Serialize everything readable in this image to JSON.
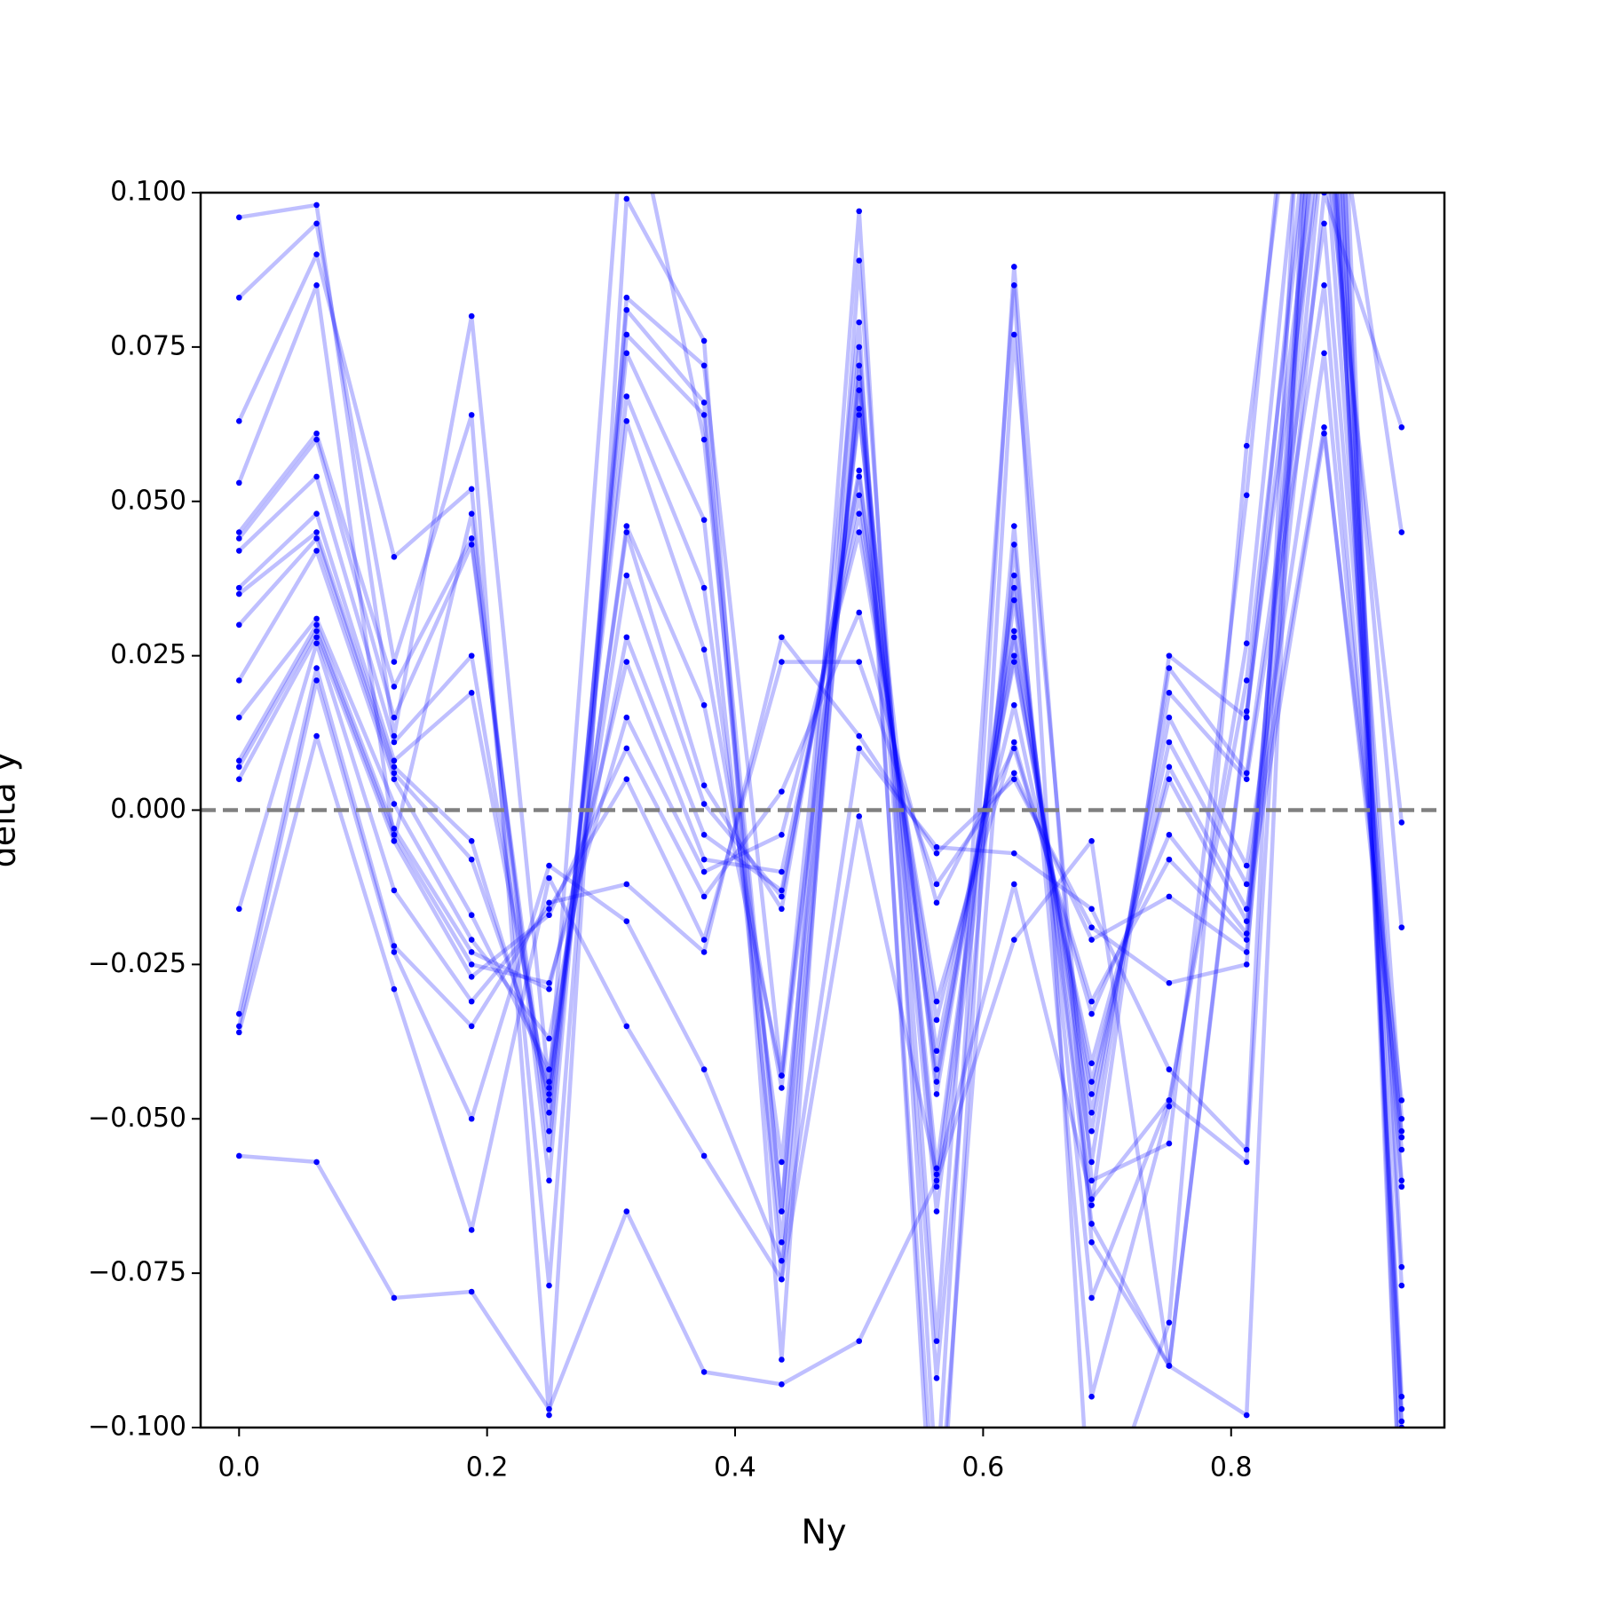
{
  "chart_data": {
    "type": "line",
    "x_label": "Ny",
    "y_label": "delta y",
    "color": "#0000ff",
    "x": [
      0,
      0.0625,
      0.125,
      0.1875,
      0.25,
      0.3125,
      0.375,
      0.4375,
      0.5,
      0.5625,
      0.625,
      0.6875,
      0.75,
      0.8125,
      0.875,
      0.9375
    ],
    "series": [
      {
        "values": [
          0.096,
          0.098,
          0.012,
          0.08,
          -0.045,
          0.12,
          0.06,
          -0.065,
          0.097,
          -0.11,
          0.088,
          -0.07,
          -0.09,
          0.015,
          0.14,
          -0.1
        ]
      },
      {
        "values": [
          0.083,
          0.095,
          0.024,
          0.064,
          -0.098,
          0.099,
          0.076,
          -0.089,
          0.089,
          -0.086,
          0.085,
          -0.12,
          -0.083,
          0.059,
          0.16,
          -0.095
        ]
      },
      {
        "values": [
          0.063,
          0.09,
          0.041,
          0.052,
          -0.077,
          0.083,
          0.072,
          -0.043,
          0.079,
          -0.13,
          0.077,
          -0.06,
          -0.054,
          0.051,
          0.18,
          -0.12
        ]
      },
      {
        "values": [
          0.053,
          0.085,
          -0.005,
          0.048,
          -0.06,
          0.081,
          0.066,
          -0.065,
          0.075,
          -0.092,
          0.046,
          -0.095,
          -0.048,
          0.027,
          0.15,
          -0.074
        ]
      },
      {
        "values": [
          0.045,
          0.061,
          0.02,
          0.044,
          -0.055,
          0.077,
          0.064,
          -0.076,
          0.072,
          -0.12,
          0.043,
          -0.079,
          -0.047,
          0.021,
          0.13,
          -0.077
        ]
      },
      {
        "values": [
          0.044,
          0.06,
          0.015,
          0.043,
          -0.052,
          0.074,
          0.047,
          -0.07,
          0.07,
          -0.061,
          0.038,
          -0.067,
          -0.09,
          0.016,
          0.11,
          -0.06
        ]
      },
      {
        "values": [
          0.042,
          0.054,
          0.011,
          0.025,
          -0.049,
          0.067,
          0.036,
          -0.057,
          0.068,
          -0.058,
          0.036,
          -0.064,
          0.025,
          0.015,
          0.12,
          -0.05
        ]
      },
      {
        "values": [
          0.036,
          0.048,
          0.008,
          0.019,
          -0.047,
          0.063,
          0.026,
          -0.045,
          0.065,
          -0.065,
          0.034,
          -0.057,
          0.023,
          0.006,
          0.095,
          -0.053
        ]
      },
      {
        "values": [
          0.035,
          0.045,
          0.007,
          -0.005,
          -0.046,
          0.046,
          0.017,
          -0.043,
          0.064,
          -0.046,
          0.029,
          -0.052,
          0.019,
          0.005,
          0.085,
          -0.061
        ]
      },
      {
        "values": [
          0.03,
          0.044,
          0.006,
          -0.008,
          -0.044,
          0.045,
          0.004,
          -0.016,
          0.055,
          -0.044,
          0.028,
          -0.049,
          0.015,
          -0.009,
          0.074,
          -0.055
        ]
      },
      {
        "values": [
          0.021,
          0.042,
          0.005,
          -0.017,
          -0.042,
          0.038,
          0.001,
          -0.014,
          0.054,
          -0.042,
          0.025,
          -0.046,
          0.011,
          -0.012,
          0.062,
          -0.052
        ]
      },
      {
        "values": [
          0.015,
          0.031,
          0.001,
          -0.021,
          -0.037,
          0.028,
          -0.004,
          -0.013,
          0.051,
          -0.039,
          0.024,
          -0.044,
          0.007,
          -0.016,
          0.061,
          -0.047
        ]
      },
      {
        "values": [
          0.008,
          0.03,
          -0.003,
          -0.023,
          -0.029,
          0.024,
          -0.008,
          -0.01,
          0.048,
          -0.034,
          0.017,
          -0.041,
          0.005,
          -0.018,
          0.12,
          -0.019
        ]
      },
      {
        "values": [
          0.007,
          0.029,
          -0.004,
          -0.025,
          -0.028,
          0.015,
          -0.01,
          -0.004,
          0.045,
          -0.031,
          0.011,
          -0.033,
          -0.004,
          -0.02,
          0.11,
          -0.002
        ]
      },
      {
        "values": [
          0.005,
          0.028,
          -0.005,
          -0.027,
          -0.017,
          0.01,
          -0.014,
          0.003,
          0.032,
          -0.015,
          0.01,
          -0.031,
          -0.008,
          -0.021,
          0.13,
          0.045
        ]
      },
      {
        "values": [
          -0.016,
          0.027,
          -0.013,
          -0.031,
          -0.016,
          0.005,
          -0.021,
          0.024,
          0.024,
          -0.012,
          0.006,
          -0.021,
          -0.014,
          -0.023,
          0.1,
          0.062
        ]
      },
      {
        "values": [
          -0.033,
          0.023,
          -0.022,
          -0.035,
          -0.015,
          -0.012,
          -0.023,
          0.028,
          0.012,
          -0.007,
          0.005,
          -0.019,
          -0.028,
          -0.025,
          0.14,
          -0.097
        ]
      },
      {
        "values": [
          -0.035,
          0.021,
          -0.023,
          -0.05,
          -0.009,
          -0.018,
          -0.042,
          -0.073,
          0.01,
          -0.006,
          -0.007,
          -0.016,
          -0.042,
          -0.055,
          0.2,
          -0.12
        ]
      },
      {
        "values": [
          -0.036,
          0.012,
          -0.029,
          -0.068,
          -0.011,
          -0.035,
          -0.056,
          -0.076,
          -0.001,
          -0.059,
          -0.012,
          -0.063,
          -0.047,
          -0.057,
          0.15,
          -0.099
        ]
      },
      {
        "values": [
          -0.056,
          -0.057,
          -0.079,
          -0.078,
          -0.097,
          -0.065,
          -0.091,
          -0.093,
          -0.086,
          -0.06,
          -0.021,
          -0.005,
          -0.09,
          -0.098,
          0.18,
          -0.11
        ]
      }
    ],
    "reference_line": {
      "value": 0,
      "color": "#808080"
    },
    "xlim": [
      -0.031,
      0.972
    ],
    "xticks": [
      {
        "value": 0,
        "label": "0.0"
      },
      0.2,
      0.4,
      0.6,
      0.8
    ],
    "ylim": [
      -0.1,
      0.1
    ],
    "yticks": [
      {
        "value": -0.1,
        "label": "−0.100"
      },
      {
        "value": -0.075,
        "label": "−0.075"
      },
      {
        "value": -0.05,
        "label": "−0.050"
      },
      {
        "value": -0.025,
        "label": "−0.025"
      },
      {
        "value": 0,
        "label": "0.000"
      },
      {
        "value": 0.025,
        "label": "0.025"
      },
      {
        "value": 0.05,
        "label": "0.050"
      },
      {
        "value": 0.075,
        "label": "0.075"
      },
      {
        "value": 0.1,
        "label": "0.100"
      }
    ]
  }
}
